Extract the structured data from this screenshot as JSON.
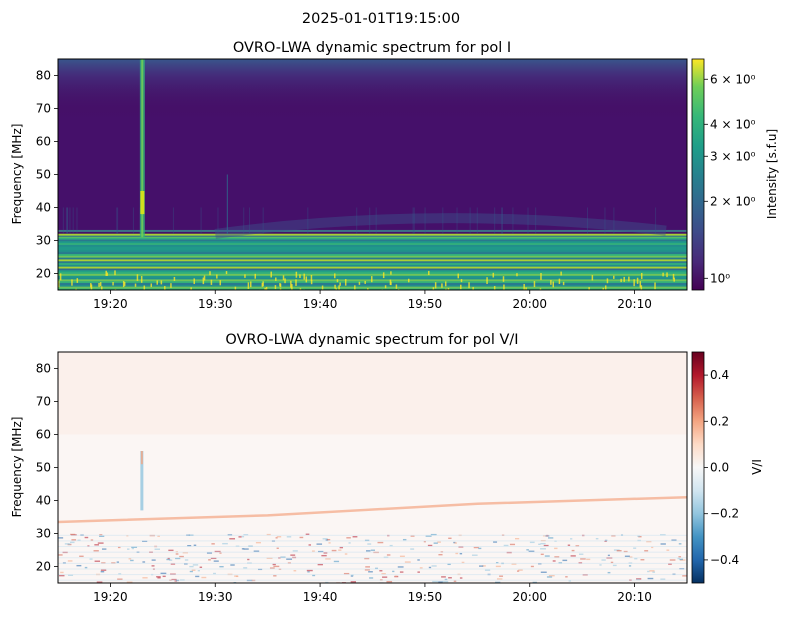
{
  "figure": {
    "suptitle": "2025-01-01T19:15:00"
  },
  "chart_data": [
    {
      "type": "heatmap",
      "title": "OVRO-LWA dynamic spectrum for pol I",
      "xlabel": "",
      "ylabel": "Frequency [MHz]",
      "x_ticks": [
        "19:20",
        "19:30",
        "19:40",
        "19:50",
        "20:00",
        "20:10"
      ],
      "x_tick_minutes": [
        5,
        15,
        25,
        35,
        45,
        55
      ],
      "x_range_minutes": [
        0,
        60
      ],
      "x_start_time": "19:15",
      "y_ticks": [
        20,
        30,
        40,
        50,
        60,
        70,
        80
      ],
      "ylim": [
        15,
        85
      ],
      "colormap": "viridis",
      "color_scale": "log",
      "colorbar": {
        "label": "Intensity [s.f.u]",
        "ticks": [
          "6 × 10⁰",
          "4 × 10⁰",
          "3 × 10⁰",
          "2 × 10⁰",
          "10⁰"
        ],
        "tick_values": [
          6,
          4,
          3,
          2,
          1
        ],
        "range": [
          0.9,
          7.2
        ]
      },
      "features": {
        "burst_time_minutes": 8.0,
        "burst_freq_range_mhz": [
          31,
          85
        ],
        "bright_band_mhz": [
          15,
          32
        ],
        "arc_feature_peak_mhz": 37
      }
    },
    {
      "type": "heatmap",
      "title": "OVRO-LWA dynamic spectrum for pol V/I",
      "xlabel": "",
      "ylabel": "Frequency [MHz]",
      "x_ticks": [
        "19:20",
        "19:30",
        "19:40",
        "19:50",
        "20:00",
        "20:10"
      ],
      "x_tick_minutes": [
        5,
        15,
        25,
        35,
        45,
        55
      ],
      "x_range_minutes": [
        0,
        60
      ],
      "x_start_time": "19:15",
      "y_ticks": [
        20,
        30,
        40,
        50,
        60,
        70,
        80
      ],
      "ylim": [
        15,
        85
      ],
      "colormap": "RdBu_r",
      "color_scale": "linear",
      "colorbar": {
        "label": "V/I",
        "ticks": [
          "0.4",
          "0.2",
          "0.0",
          "−0.2",
          "−0.4"
        ],
        "tick_values": [
          0.4,
          0.2,
          0.0,
          -0.2,
          -0.4
        ],
        "range": [
          -0.5,
          0.5
        ]
      }
    }
  ]
}
